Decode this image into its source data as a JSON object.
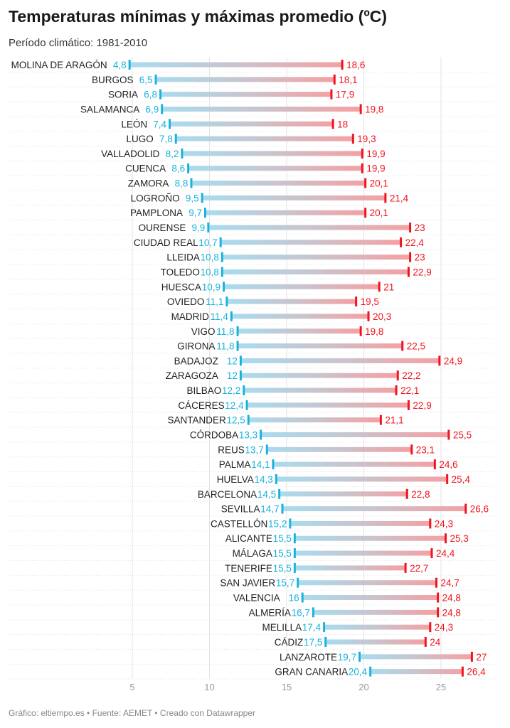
{
  "title": "Temperaturas mínimas y máximas promedio (ºC)",
  "subtitle": "Período climático: 1981-2010",
  "footer": "Gráfico: eltiempo.es • Fuente: AEMET • Creado con Datawrapper",
  "colors": {
    "min": "#1ab2dd",
    "max": "#f0141e",
    "bar_min": "#a8dcef",
    "bar_mid": "#c9c4cd",
    "bar_max": "#f5a0a3",
    "grid": "#e3e3e3",
    "axis_text": "#999999",
    "label": "#222222"
  },
  "chart_data": {
    "type": "range-bar",
    "title": "Temperaturas mínimas y máximas promedio (ºC)",
    "subtitle": "Período climático: 1981-2010",
    "xlim": [
      3.5,
      28
    ],
    "xticks": [
      5,
      10,
      15,
      20,
      25
    ],
    "xtick_labels": [
      "5",
      "10",
      "15",
      "20",
      "25"
    ],
    "grid": true,
    "categories": [
      "MOLINA DE ARAGÓN",
      "BURGOS",
      "SORIA",
      "SALAMANCA",
      "LEÓN",
      "LUGO",
      "VALLADOLID",
      "CUENCA",
      "ZAMORA",
      "LOGROÑO",
      "PAMPLONA",
      "OURENSE",
      "CIUDAD REAL",
      "LLEIDA",
      "TOLEDO",
      "HUESCA",
      "OVIEDO",
      "MADRID",
      "VIGO",
      "GIRONA",
      "BADAJOZ",
      "ZARAGOZA",
      "BILBAO",
      "CÁCERES",
      "SANTANDER",
      "CÓRDOBA",
      "REUS",
      "PALMA",
      "HUELVA",
      "BARCELONA",
      "SEVILLA",
      "CASTELLÓN",
      "ALICANTE",
      "MÁLAGA",
      "TENERIFE",
      "SAN JAVIER",
      "VALENCIA",
      "ALMERÍA",
      "MELILLA",
      "CÁDIZ",
      "LANZAROTE",
      "GRAN CANARIA"
    ],
    "min": [
      4.8,
      6.5,
      6.8,
      6.9,
      7.4,
      7.8,
      8.2,
      8.6,
      8.8,
      9.5,
      9.7,
      9.9,
      10.7,
      10.8,
      10.8,
      10.9,
      11.1,
      11.4,
      11.8,
      11.8,
      12,
      12,
      12.2,
      12.4,
      12.5,
      13.3,
      13.7,
      14.1,
      14.3,
      14.5,
      14.7,
      15.2,
      15.5,
      15.5,
      15.5,
      15.7,
      16,
      16.7,
      17.4,
      17.5,
      19.7,
      20.4
    ],
    "max": [
      18.6,
      18.1,
      17.9,
      19.8,
      18,
      19.3,
      19.9,
      19.9,
      20.1,
      21.4,
      20.1,
      23,
      22.4,
      23,
      22.9,
      21,
      19.5,
      20.3,
      19.8,
      22.5,
      24.9,
      22.2,
      22.1,
      22.9,
      21.1,
      25.5,
      23.1,
      24.6,
      25.4,
      22.8,
      26.6,
      24.3,
      25.3,
      24.4,
      22.7,
      24.7,
      24.8,
      24.8,
      24.3,
      24,
      27,
      26.4
    ],
    "min_labels": [
      "4,8",
      "6,5",
      "6,8",
      "6,9",
      "7,4",
      "7,8",
      "8,2",
      "8,6",
      "8,8",
      "9,5",
      "9,7",
      "9,9",
      "10,7",
      "10,8",
      "10,8",
      "10,9",
      "11,1",
      "11,4",
      "11,8",
      "11,8",
      "12",
      "12",
      "12,2",
      "12,4",
      "12,5",
      "13,3",
      "13,7",
      "14,1",
      "14,3",
      "14,5",
      "14,7",
      "15,2",
      "15,5",
      "15,5",
      "15,5",
      "15,7",
      "16",
      "16,7",
      "17,4",
      "17,5",
      "19,7",
      "20,4"
    ],
    "max_labels": [
      "18,6",
      "18,1",
      "17,9",
      "19,8",
      "18",
      "19,3",
      "19,9",
      "19,9",
      "20,1",
      "21,4",
      "20,1",
      "23",
      "22,4",
      "23",
      "22,9",
      "21",
      "19,5",
      "20,3",
      "19,8",
      "22,5",
      "24,9",
      "22,2",
      "22,1",
      "22,9",
      "21,1",
      "25,5",
      "23,1",
      "24,6",
      "25,4",
      "22,8",
      "26,6",
      "24,3",
      "25,3",
      "24,4",
      "22,7",
      "24,7",
      "24,8",
      "24,8",
      "24,3",
      "24",
      "27",
      "26,4"
    ]
  }
}
